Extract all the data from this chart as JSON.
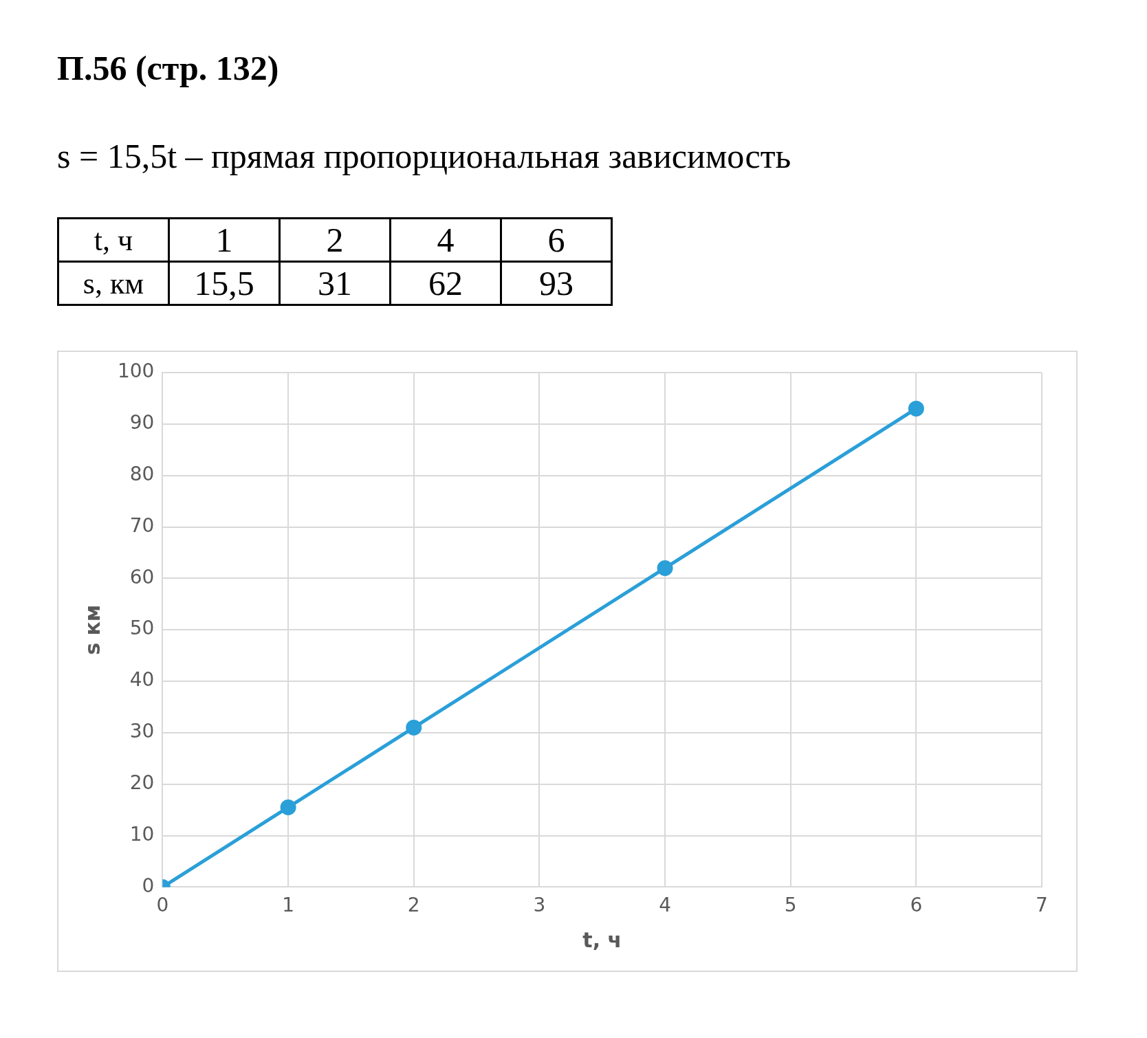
{
  "chart_data": {
    "type": "line",
    "title": "П.56 (стр. 132)",
    "subtitle": "s = 15,5t – прямая пропорциональная зависимость",
    "annotations": [
      "t, ч",
      "1",
      "2",
      "4",
      "6",
      "s, км",
      "15,5",
      "31",
      "62",
      "93"
    ],
    "x": [
      0,
      1,
      2,
      4,
      6
    ],
    "series": [
      {
        "color": "#2a9fd8",
        "values": [
          0,
          15.5,
          31,
          62,
          93
        ]
      }
    ],
    "xlim": [
      0,
      7
    ],
    "xticks": [
      0,
      1,
      2,
      3,
      4,
      5,
      6,
      7
    ],
    "ylim": [
      0,
      100
    ],
    "yticks": [
      0,
      10,
      20,
      30,
      40,
      50,
      60,
      70,
      80,
      90,
      100
    ],
    "xlabel": "t, ч",
    "ylabel": "s км",
    "grid": true,
    "legend": false,
    "marker": "circle",
    "line_style": "solid"
  }
}
